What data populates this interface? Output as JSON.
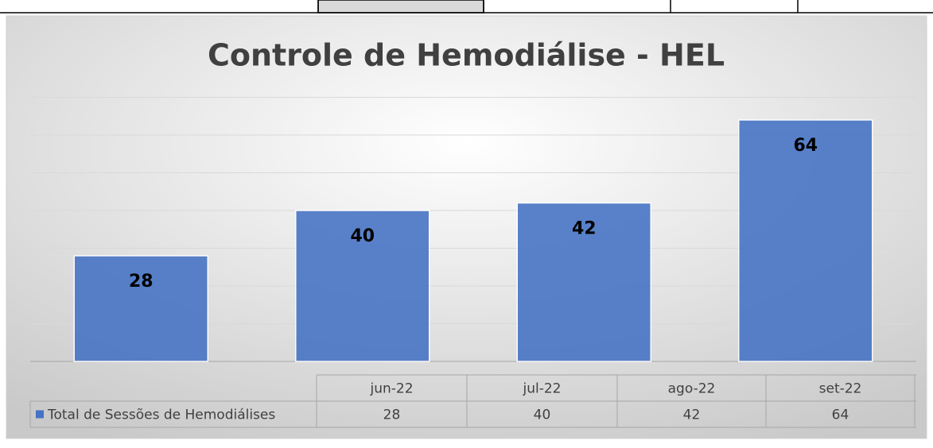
{
  "chart_data": {
    "type": "bar",
    "title": "Controle de Hemodiálise - HEL",
    "categories": [
      "jun-22",
      "jul-22",
      "ago-22",
      "set-22"
    ],
    "series": [
      {
        "name": "Total de Sessões de Hemodiálises",
        "color": "#4472c4",
        "values": [
          28,
          40,
          42,
          64
        ]
      }
    ],
    "ylim": [
      0,
      70
    ],
    "yticks": [
      0,
      10,
      20,
      30,
      40,
      50,
      60,
      70
    ],
    "grid": true,
    "data_table": true
  }
}
